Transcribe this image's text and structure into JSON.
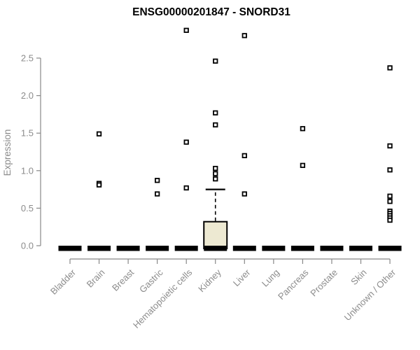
{
  "chart_data": {
    "type": "boxplot",
    "title": "ENSG00000201847 - SNORD31",
    "xlabel": "",
    "ylabel": "Expression",
    "ytick_labels": [
      "0.0",
      "0.5",
      "1.0",
      "1.5",
      "2.0",
      "2.5"
    ],
    "ylim": [
      0,
      2.9
    ],
    "grid": false,
    "legend": false,
    "marker": "open-square",
    "colors": {
      "box_fill": "#ede9d2",
      "box_stroke": "#000000",
      "median": "#000000",
      "axis": "#888888",
      "tick_label": "#8c8c8c",
      "title": "#000000",
      "background": "#ffffff"
    },
    "groups": [
      {
        "label": "Bladder",
        "median": 0,
        "q1": 0,
        "q3": 0,
        "whisker_low": 0,
        "whisker_high": 0,
        "outliers": []
      },
      {
        "label": "Brain",
        "median": 0,
        "q1": 0,
        "q3": 0,
        "whisker_low": 0,
        "whisker_high": 0,
        "outliers": [
          1.49,
          0.83,
          0.81
        ]
      },
      {
        "label": "Breast",
        "median": 0,
        "q1": 0,
        "q3": 0,
        "whisker_low": 0,
        "whisker_high": 0,
        "outliers": []
      },
      {
        "label": "Gastric",
        "median": 0,
        "q1": 0,
        "q3": 0,
        "whisker_low": 0,
        "whisker_high": 0,
        "outliers": [
          0.87,
          0.69
        ]
      },
      {
        "label": "Hematopoietic cells",
        "median": 0,
        "q1": 0,
        "q3": 0,
        "whisker_low": 0,
        "whisker_high": 0,
        "outliers": [
          2.87,
          1.38,
          0.77
        ]
      },
      {
        "label": "Kidney",
        "median": 0,
        "q1": 0,
        "q3": 0.32,
        "whisker_low": 0,
        "whisker_high": 0.75,
        "outliers": [
          2.46,
          1.77,
          1.61,
          1.03,
          0.96,
          0.89
        ]
      },
      {
        "label": "Liver",
        "median": 0,
        "q1": 0,
        "q3": 0,
        "whisker_low": 0,
        "whisker_high": 0,
        "outliers": [
          2.8,
          1.2,
          0.69
        ]
      },
      {
        "label": "Lung",
        "median": 0,
        "q1": 0,
        "q3": 0,
        "whisker_low": 0,
        "whisker_high": 0,
        "outliers": []
      },
      {
        "label": "Pancreas",
        "median": 0,
        "q1": 0,
        "q3": 0,
        "whisker_low": 0,
        "whisker_high": 0,
        "outliers": [
          1.56,
          1.07
        ]
      },
      {
        "label": "Prostate",
        "median": 0,
        "q1": 0,
        "q3": 0,
        "whisker_low": 0,
        "whisker_high": 0,
        "outliers": []
      },
      {
        "label": "Skin",
        "median": 0,
        "q1": 0,
        "q3": 0,
        "whisker_low": 0,
        "whisker_high": 0,
        "outliers": []
      },
      {
        "label": "Unknown / Other",
        "median": 0,
        "q1": 0,
        "q3": 0,
        "whisker_low": 0,
        "whisker_high": 0,
        "outliers": [
          2.37,
          1.33,
          1.01,
          0.66,
          0.59,
          0.46,
          0.43,
          0.4,
          0.37,
          0.34
        ]
      }
    ]
  }
}
